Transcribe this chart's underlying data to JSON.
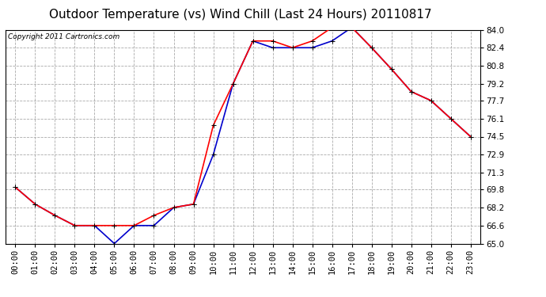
{
  "title": "Outdoor Temperature (vs) Wind Chill (Last 24 Hours) 20110817",
  "copyright": "Copyright 2011 Cartronics.com",
  "hours": [
    "00:00",
    "01:00",
    "02:00",
    "03:00",
    "04:00",
    "05:00",
    "06:00",
    "07:00",
    "08:00",
    "09:00",
    "10:00",
    "11:00",
    "12:00",
    "13:00",
    "14:00",
    "15:00",
    "16:00",
    "17:00",
    "18:00",
    "19:00",
    "20:00",
    "21:00",
    "22:00",
    "23:00"
  ],
  "temp": [
    70.0,
    68.5,
    67.5,
    66.6,
    66.6,
    66.6,
    66.6,
    67.5,
    68.2,
    68.5,
    75.5,
    79.2,
    83.0,
    83.0,
    82.4,
    83.0,
    84.2,
    84.2,
    82.4,
    80.5,
    78.5,
    77.7,
    76.1,
    74.5
  ],
  "windchill": [
    70.0,
    68.5,
    67.5,
    66.6,
    66.6,
    65.0,
    66.6,
    66.6,
    68.2,
    68.5,
    72.9,
    79.2,
    83.0,
    82.4,
    82.4,
    82.4,
    83.0,
    84.2,
    82.4,
    80.5,
    78.5,
    77.7,
    76.1,
    74.5
  ],
  "temp_color": "#ff0000",
  "windchill_color": "#0000cc",
  "background_color": "#ffffff",
  "grid_color": "#aaaaaa",
  "ylim": [
    65.0,
    84.0
  ],
  "ytick_values": [
    65.0,
    66.6,
    68.2,
    69.8,
    71.3,
    72.9,
    74.5,
    76.1,
    77.7,
    79.2,
    80.8,
    82.4,
    84.0
  ],
  "ytick_labels": [
    "65.0",
    "66.6",
    "68.2",
    "69.8",
    "71.3",
    "72.9",
    "74.5",
    "76.1",
    "77.7",
    "79.2",
    "80.8",
    "82.4",
    "84.0"
  ],
  "title_fontsize": 11,
  "tick_fontsize": 7.5,
  "copyright_fontsize": 6.5,
  "marker": "+",
  "markersize": 5,
  "linewidth": 1.2
}
